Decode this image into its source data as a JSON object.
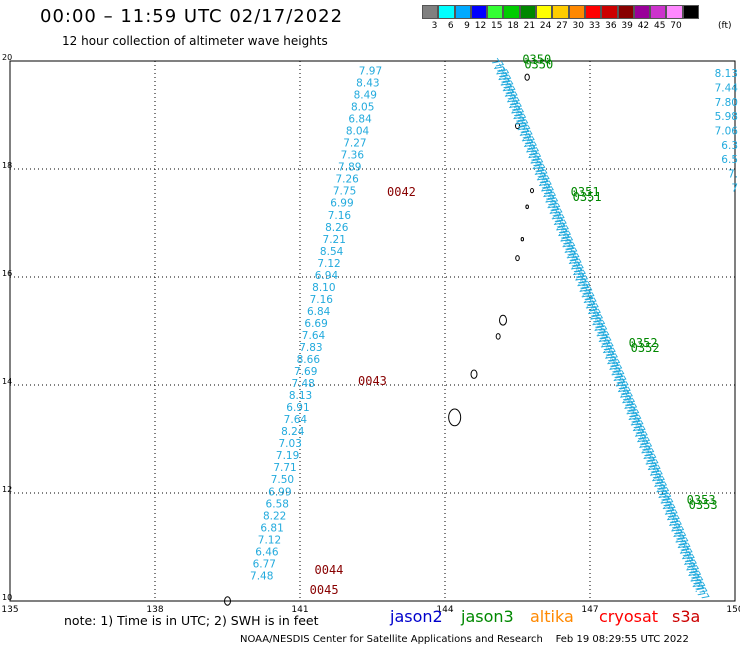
{
  "header": {
    "title": "00:00 – 11:59 UTC 02/17/2022",
    "subtitle": "12 hour collection of altimeter wave heights"
  },
  "legend": {
    "colors": [
      "#808080",
      "#00ffff",
      "#00aaff",
      "#0000ff",
      "#33ff33",
      "#00cc00",
      "#008800",
      "#ffff00",
      "#ffcc00",
      "#ff8800",
      "#ff0000",
      "#cc0000",
      "#880000",
      "#990099",
      "#cc33cc",
      "#ff88ff",
      "#000000"
    ],
    "labels": [
      "3",
      "6",
      "9",
      "12",
      "15",
      "18",
      "21",
      "24",
      "27",
      "30",
      "33",
      "36",
      "39",
      "42",
      "45",
      "70"
    ],
    "unit": "(ft)"
  },
  "axes": {
    "lon_ticks": [
      "135",
      "138",
      "141",
      "144",
      "147",
      "150"
    ],
    "lat_ticks": [
      "20",
      "18",
      "16",
      "14",
      "12",
      "10"
    ]
  },
  "passes": {
    "west_track_values": [
      "7.97",
      "8.43",
      "8.49",
      "8.05",
      "6.84",
      "8.04",
      "7.27",
      "7.36",
      "7.89",
      "7.26",
      "7.75",
      "6.99",
      "7.16",
      "8.26",
      "7.21",
      "8.54",
      "7.12",
      "6.94",
      "8.10",
      "7.16",
      "6.84",
      "6.69",
      "7.64",
      "7.83",
      "8.66",
      "7.69",
      "7.48",
      "8.13",
      "6.91",
      "7.64",
      "8.24",
      "7.03",
      "7.19",
      "7.71",
      "7.50",
      "6.99",
      "6.58",
      "8.22",
      "6.81",
      "7.12",
      "6.46",
      "6.77",
      "7.48"
    ],
    "east_top_values": [
      "8.13",
      "7.44",
      "7.80",
      "5.98",
      "7.06",
      "6.3",
      "6.5",
      "7.",
      "7"
    ],
    "time_labels": [
      {
        "text": "0042",
        "lat": 17.5,
        "lon": 142.8,
        "color": "#880000"
      },
      {
        "text": "0043",
        "lat": 14.0,
        "lon": 142.2,
        "color": "#880000"
      },
      {
        "text": "0044",
        "lat": 10.5,
        "lon": 141.3,
        "color": "#880000"
      },
      {
        "text": "0045",
        "lat": 10.13,
        "lon": 141.2,
        "color": "#880000"
      },
      {
        "text": "0350",
        "lat": 19.95,
        "lon": 145.6,
        "color": "#008800"
      },
      {
        "text": "0351",
        "lat": 17.5,
        "lon": 146.6,
        "color": "#008800"
      },
      {
        "text": "0352",
        "lat": 14.7,
        "lon": 147.8,
        "color": "#008800"
      },
      {
        "text": "0353",
        "lat": 11.8,
        "lon": 149.0,
        "color": "#008800"
      }
    ]
  },
  "footer": {
    "note": "note: 1) Time is in UTC; 2) SWH is in feet",
    "satellites": [
      {
        "name": "jason2",
        "color": "#0000cc"
      },
      {
        "name": "jason3",
        "color": "#008800"
      },
      {
        "name": "altika",
        "color": "#ff8800"
      },
      {
        "name": "cryosat",
        "color": "#ff0000"
      },
      {
        "name": "s3a",
        "color": "#cc0000"
      }
    ],
    "credit": "NOAA/NESDIS Center for Satellite Applications and Research",
    "timestamp": "Feb 19 08:29:55 UTC 2022"
  },
  "colors": {
    "track_value": "#22aadd"
  }
}
